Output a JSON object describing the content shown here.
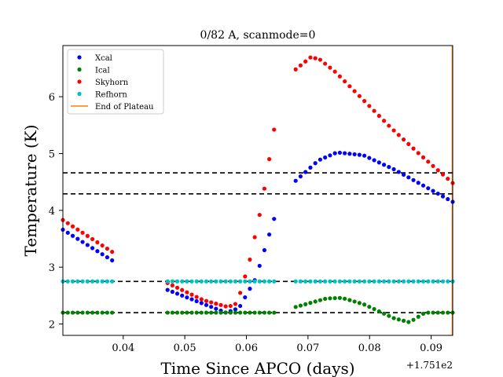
{
  "chart_data": {
    "type": "scatter",
    "title": "0/82 A, scanmode=0",
    "xlabel": "Time Since APCO (days)",
    "ylabel": "Temperature (K)",
    "x_offset_label": "+1.751e2",
    "xlim": [
      0.0302,
      0.0935
    ],
    "ylim": [
      1.8,
      6.9
    ],
    "x_ticks": [
      0.04,
      0.05,
      0.06,
      0.07,
      0.08,
      0.09
    ],
    "x_tick_labels": [
      "0.04",
      "0.05",
      "0.06",
      "0.07",
      "0.08",
      "0.09"
    ],
    "y_ticks": [
      2,
      3,
      4,
      5,
      6
    ],
    "y_tick_labels": [
      "2",
      "3",
      "4",
      "5",
      "6"
    ],
    "grid": false,
    "legend_position": "top-left",
    "reference_lines_y": [
      4.66,
      4.29,
      2.75,
      2.2
    ],
    "series": [
      {
        "name": "Xcal",
        "color": "#0000ff",
        "segments": [
          {
            "x": [
              0.0302,
              0.0382
            ],
            "y": [
              3.66,
              3.12
            ]
          },
          {
            "x": [
              0.0472,
              0.0567,
              0.0588,
              0.0615,
              0.0645
            ],
            "y": [
              2.6,
              2.2,
              2.28,
              2.8,
              3.85
            ]
          },
          {
            "x": [
              0.068,
              0.0717,
              0.0747,
              0.079,
              0.084,
              0.0935
            ],
            "y": [
              4.52,
              4.88,
              5.02,
              4.97,
              4.72,
              4.15
            ]
          }
        ]
      },
      {
        "name": "Ical",
        "color": "#008000",
        "segments": [
          {
            "x": [
              0.0302,
              0.0382
            ],
            "y": [
              2.2,
              2.2
            ]
          },
          {
            "x": [
              0.0472,
              0.0645
            ],
            "y": [
              2.2,
              2.2
            ]
          },
          {
            "x": [
              0.068,
              0.073,
              0.0755,
              0.079,
              0.084,
              0.0865,
              0.0875,
              0.089,
              0.0935
            ],
            "y": [
              2.3,
              2.45,
              2.46,
              2.35,
              2.1,
              2.03,
              2.1,
              2.2,
              2.2
            ]
          }
        ]
      },
      {
        "name": "Skyhorn",
        "color": "#ff0000",
        "segments": [
          {
            "x": [
              0.0302,
              0.0382
            ],
            "y": [
              3.83,
              3.27
            ]
          },
          {
            "x": [
              0.0472,
              0.053,
              0.057,
              0.0582,
              0.059,
              0.0605,
              0.0625,
              0.0645
            ],
            "y": [
              2.72,
              2.42,
              2.3,
              2.35,
              2.55,
              3.1,
              4.1,
              5.42
            ]
          },
          {
            "x": [
              0.068,
              0.0705,
              0.072,
              0.0745,
              0.078,
              0.0835,
              0.088,
              0.0935
            ],
            "y": [
              6.48,
              6.7,
              6.65,
              6.43,
              6.05,
              5.45,
              5.0,
              4.48
            ]
          }
        ]
      },
      {
        "name": "Refhorn",
        "color": "#00bfbf",
        "segments": [
          {
            "x": [
              0.0302,
              0.0382
            ],
            "y": [
              2.75,
              2.75
            ]
          },
          {
            "x": [
              0.0472,
              0.0645
            ],
            "y": [
              2.75,
              2.75
            ]
          },
          {
            "x": [
              0.068,
              0.0935
            ],
            "y": [
              2.75,
              2.75
            ]
          }
        ]
      }
    ],
    "end_of_plateau": {
      "name": "End of Plateau",
      "color": "#ff7f0e"
    }
  }
}
